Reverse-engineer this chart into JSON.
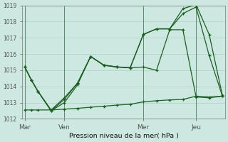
{
  "background_color": "#cde8e0",
  "grid_color": "#aacfc8",
  "line_color": "#1a6020",
  "xlabel_label": "Pression niveau de la mer( hPa )",
  "xlabel_ticks": [
    "Mar",
    "Ven",
    "Mer",
    "Jeu"
  ],
  "xlabel_tick_positions": [
    0,
    3,
    9,
    13
  ],
  "vlines": [
    0,
    3,
    9,
    13
  ],
  "ylim": [
    1012,
    1019
  ],
  "yticks": [
    1012,
    1013,
    1014,
    1015,
    1016,
    1017,
    1018,
    1019
  ],
  "xlim": [
    -0.2,
    15.2
  ],
  "num_points": 16,
  "series1_x": [
    0,
    0.5,
    1,
    2,
    3,
    4,
    5,
    6,
    7,
    8,
    9,
    10,
    11,
    12,
    13,
    14,
    15
  ],
  "series1_y": [
    1015.2,
    1014.4,
    1013.7,
    1012.5,
    1013.0,
    1014.1,
    1015.85,
    1015.3,
    1015.2,
    1015.15,
    1015.2,
    1015.0,
    1017.5,
    1017.5,
    1013.35,
    1013.3,
    1013.4
  ],
  "series2_x": [
    0,
    0.5,
    1,
    2,
    3,
    4,
    5,
    6,
    7,
    8,
    9,
    10,
    11,
    12,
    13,
    14,
    15
  ],
  "series2_y": [
    1015.2,
    1014.4,
    1013.7,
    1012.5,
    1013.2,
    1014.2,
    1015.85,
    1015.32,
    1015.2,
    1015.15,
    1017.2,
    1017.55,
    1017.55,
    1018.5,
    1018.9,
    1015.9,
    1013.4
  ],
  "series3_x": [
    0,
    0.5,
    1,
    2,
    3,
    4,
    5,
    6,
    7,
    8,
    9,
    10,
    11,
    12,
    13,
    14,
    15
  ],
  "series3_y": [
    1015.2,
    1014.4,
    1013.7,
    1012.55,
    1013.3,
    1014.2,
    1015.85,
    1015.32,
    1015.21,
    1015.16,
    1017.22,
    1017.56,
    1017.56,
    1018.8,
    1019.05,
    1017.2,
    1013.45
  ],
  "series4_x": [
    0,
    0.5,
    1,
    2,
    3,
    4,
    5,
    6,
    7,
    8,
    9,
    10,
    11,
    12,
    13,
    14,
    15
  ],
  "series4_y": [
    1012.55,
    1012.55,
    1012.55,
    1012.55,
    1012.6,
    1012.65,
    1012.72,
    1012.78,
    1012.85,
    1012.9,
    1013.05,
    1013.12,
    1013.17,
    1013.2,
    1013.4,
    1013.35,
    1013.4
  ]
}
